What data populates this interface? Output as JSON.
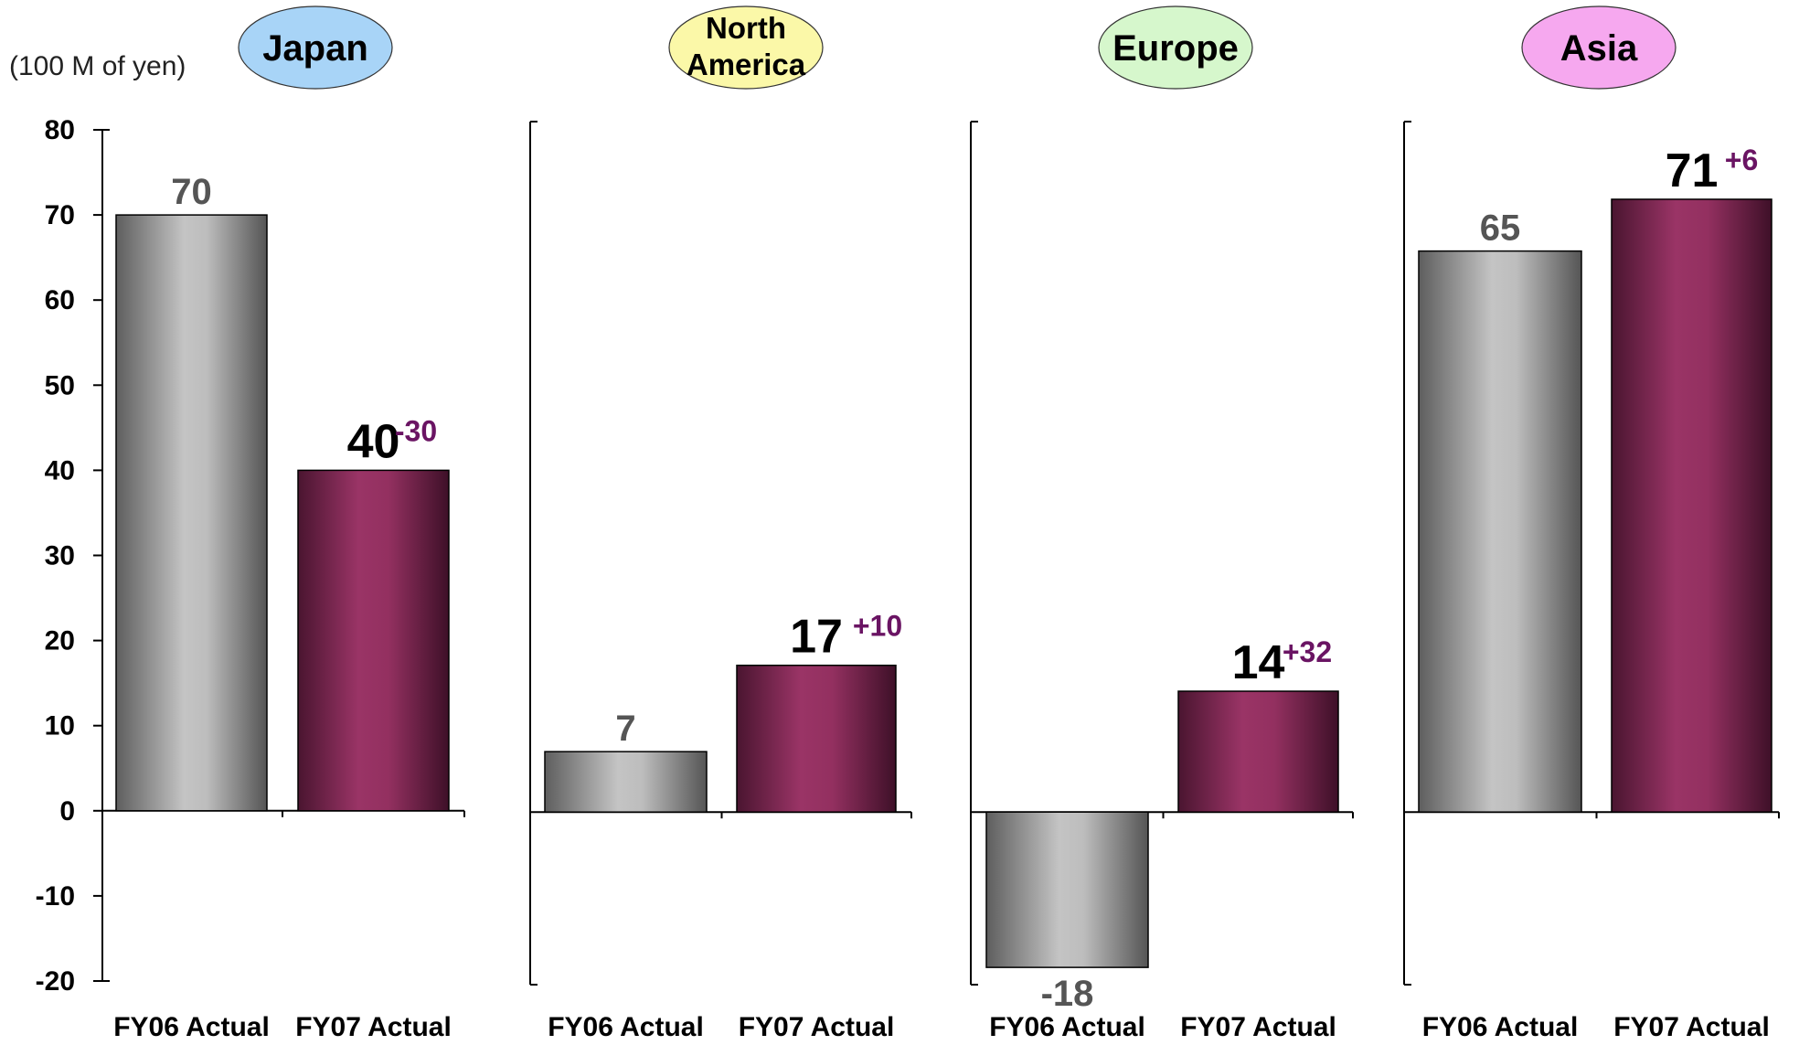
{
  "unit_label": "(100 M of yen)",
  "colors": {
    "prev_bar": "#a9a9a9",
    "curr_bar": "#8a2a5a",
    "delta_text": "#6a1463",
    "japan_badge": "#a8d4f7",
    "north_america_badge": "#fbf8a8",
    "europe_badge": "#d6f7cc",
    "asia_badge": "#f6a8ef"
  },
  "chart_data": [
    {
      "type": "bar",
      "title": "Japan",
      "categories": [
        "FY06 Actual",
        "FY07 Actual"
      ],
      "values": [
        70,
        40
      ],
      "value_labels": [
        "70",
        "40"
      ],
      "delta_label": "-30",
      "ylim": [
        -20,
        80
      ],
      "yticks": [
        "80",
        "70",
        "60",
        "50",
        "40",
        "30",
        "20",
        "10",
        "0",
        "-10",
        "-20"
      ]
    },
    {
      "type": "bar",
      "title": "North America",
      "title_lines": [
        "North",
        "America"
      ],
      "categories": [
        "FY06 Actual",
        "FY07 Actual"
      ],
      "values": [
        7,
        17
      ],
      "value_labels": [
        "7",
        "17"
      ],
      "delta_label": "+10",
      "ylim": [
        -20,
        80
      ]
    },
    {
      "type": "bar",
      "title": "Europe",
      "categories": [
        "FY06 Actual",
        "FY07 Actual"
      ],
      "values": [
        -18,
        14
      ],
      "value_labels": [
        "-18",
        "14"
      ],
      "delta_label": "+32",
      "ylim": [
        -20,
        80
      ]
    },
    {
      "type": "bar",
      "title": "Asia",
      "categories": [
        "FY06 Actual",
        "FY07 Actual"
      ],
      "values": [
        65,
        71
      ],
      "value_labels": [
        "65",
        "71"
      ],
      "delta_label": "+6",
      "ylim": [
        -20,
        80
      ]
    }
  ]
}
